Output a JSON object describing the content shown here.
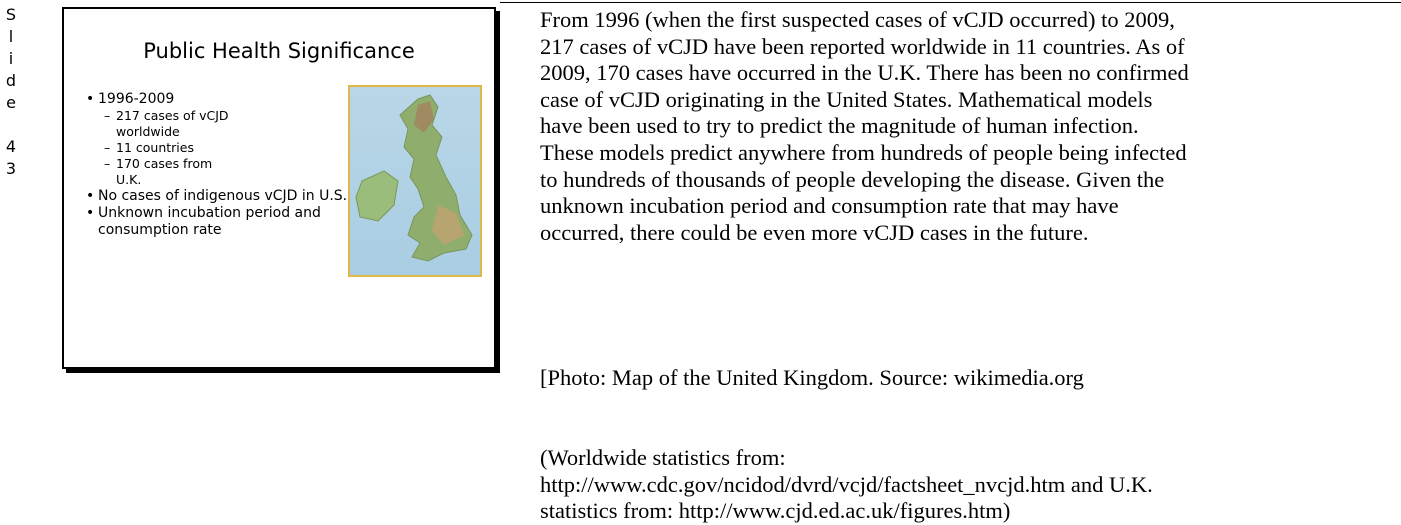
{
  "slide_label": [
    "S",
    "l",
    "i",
    "d",
    "e",
    "4",
    "3"
  ],
  "slide": {
    "title": "Public Health Significance",
    "bullets": [
      {
        "text": "1996-2009",
        "sub": [
          "217 cases of vCJD worldwide",
          "11 countries",
          "170 cases from U.K."
        ]
      },
      {
        "text": "No cases of indigenous vCJD in U.S.",
        "sub": []
      },
      {
        "text": "Unknown incubation period and consumption rate",
        "sub": []
      }
    ]
  },
  "notes": [
    [
      "From 1996 (when the first suspected cases of vCJD occurred) to 2009,",
      "217 cases of vCJD have been reported worldwide in 11 countries. As of",
      "2009, 170 cases have occurred in the U.K. There has been no confirmed",
      "case of vCJD originating in the United States. Mathematical models",
      "have been used to try to predict the magnitude of human infection.",
      "These models predict anywhere from hundreds of people being infected",
      "to hundreds of thousands of people developing the disease. Given the",
      "unknown incubation period and consumption rate that may have",
      "occurred, there could be even more vCJD cases in the future."
    ],
    [
      "[Photo: Map of the United Kingdom. Source: wikimedia.org"
    ],
    [
      "(Worldwide statistics from:",
      "http://www.cdc.gov/ncidod/dvrd/vcjd/factsheet_nvcjd.htm and U.K.",
      "statistics from: http://www.cjd.ed.ac.uk/figures.htm)"
    ]
  ]
}
